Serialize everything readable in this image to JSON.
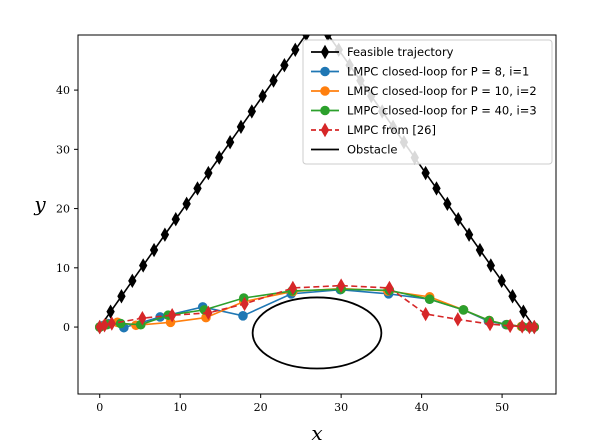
{
  "chart_data": {
    "type": "line",
    "xlabel": "x",
    "ylabel": "y",
    "xlim": [
      -2.7,
      56.7
    ],
    "ylim": [
      -11.3,
      49.3
    ],
    "xticks": [
      0,
      10,
      20,
      30,
      40,
      50
    ],
    "yticks": [
      0,
      10,
      20,
      30,
      40
    ],
    "grid": false,
    "legend_position": "top-right",
    "legend": [
      "Feasible trajectory",
      "LMPC closed-loop for P = 8, i=1",
      "LMPC closed-loop for P = 10, i=2",
      "LMPC closed-loop for P = 40, i=3",
      "LMPC from [26]",
      "Obstacle"
    ],
    "series": [
      {
        "name": "Feasible trajectory",
        "color": "#000000",
        "marker": "thin_diamond",
        "linestyle": "solid",
        "x": [
          0,
          1.35,
          2.7,
          4.05,
          5.4,
          6.75,
          8.1,
          9.45,
          10.8,
          12.15,
          13.5,
          14.85,
          16.2,
          17.55,
          18.9,
          20.25,
          21.6,
          22.95,
          24.3,
          25.65,
          27.0,
          28.35,
          29.7,
          31.05,
          32.4,
          33.75,
          35.1,
          36.45,
          37.8,
          39.15,
          40.5,
          41.85,
          43.2,
          44.55,
          45.9,
          47.25,
          48.6,
          49.95,
          51.3,
          52.65,
          54.0
        ],
        "y": [
          0,
          2.6,
          5.2,
          7.8,
          10.4,
          13.0,
          15.6,
          18.2,
          20.8,
          23.4,
          26.0,
          28.6,
          31.2,
          33.8,
          36.4,
          39.0,
          41.6,
          44.2,
          46.8,
          49.4,
          52.0,
          49.4,
          46.8,
          44.2,
          41.6,
          39.0,
          36.4,
          33.8,
          31.2,
          28.6,
          26.0,
          23.4,
          20.8,
          18.2,
          15.6,
          13.0,
          10.4,
          7.8,
          5.2,
          2.6,
          0
        ]
      },
      {
        "name": "LMPC closed-loop for P = 8, i=1",
        "color": "#1f77b4",
        "marker": "circle",
        "linestyle": "solid",
        "x": [
          0,
          0.5,
          1.0,
          3.0,
          7.5,
          12.8,
          17.8,
          23.8,
          29.9,
          35.9,
          41.0,
          45.2,
          48.3,
          50.5,
          52.5,
          53.5,
          54.0
        ],
        "y": [
          0,
          0.3,
          0.6,
          -0.1,
          1.7,
          3.4,
          1.9,
          5.6,
          6.3,
          5.6,
          4.7,
          2.9,
          1.0,
          0.4,
          0.1,
          0,
          0
        ]
      },
      {
        "name": "LMPC closed-loop for P = 10, i=2",
        "color": "#ff7f0e",
        "marker": "circle",
        "linestyle": "solid",
        "x": [
          0,
          0.8,
          2.2,
          4.5,
          8.8,
          13.2,
          17.9,
          24.0,
          30.0,
          35.8,
          41.0,
          45.2,
          48.4,
          50.6,
          52.4,
          53.4,
          54.0
        ],
        "y": [
          0,
          0.5,
          0.8,
          0.3,
          0.8,
          1.6,
          4.3,
          6.0,
          6.5,
          6.1,
          5.1,
          2.9,
          1.1,
          0.4,
          0.1,
          0,
          0
        ]
      },
      {
        "name": "LMPC closed-loop for P = 40, i=3",
        "color": "#2ca02c",
        "marker": "circle",
        "linestyle": "solid",
        "x": [
          0,
          0.9,
          2.6,
          5.1,
          8.5,
          13.0,
          17.9,
          23.9,
          30.0,
          36.0,
          41.0,
          45.2,
          48.4,
          50.6,
          52.5,
          53.4,
          54.0
        ],
        "y": [
          0,
          0.4,
          0.6,
          0.4,
          2.0,
          2.9,
          4.9,
          6.1,
          6.4,
          6.2,
          4.7,
          2.9,
          1.1,
          0.4,
          0.1,
          0,
          0
        ]
      },
      {
        "name": "LMPC from [26]",
        "color": "#d62728",
        "marker": "thin_diamond",
        "linestyle": "dashed",
        "x": [
          0,
          0.6,
          1.5,
          5.3,
          9.0,
          13.5,
          18.0,
          24.0,
          30.0,
          36.0,
          40.5,
          44.5,
          48.5,
          51.0,
          52.5,
          53.4,
          54.0
        ],
        "y": [
          0,
          0.3,
          0.6,
          1.5,
          2.0,
          2.4,
          3.9,
          6.6,
          7.0,
          6.6,
          2.2,
          1.3,
          0.5,
          0.2,
          0.1,
          0,
          0
        ]
      }
    ],
    "obstacle": {
      "name": "Obstacle",
      "color": "#000000",
      "center": [
        27,
        -1
      ],
      "radius_x": 8,
      "radius_y": 6
    }
  }
}
